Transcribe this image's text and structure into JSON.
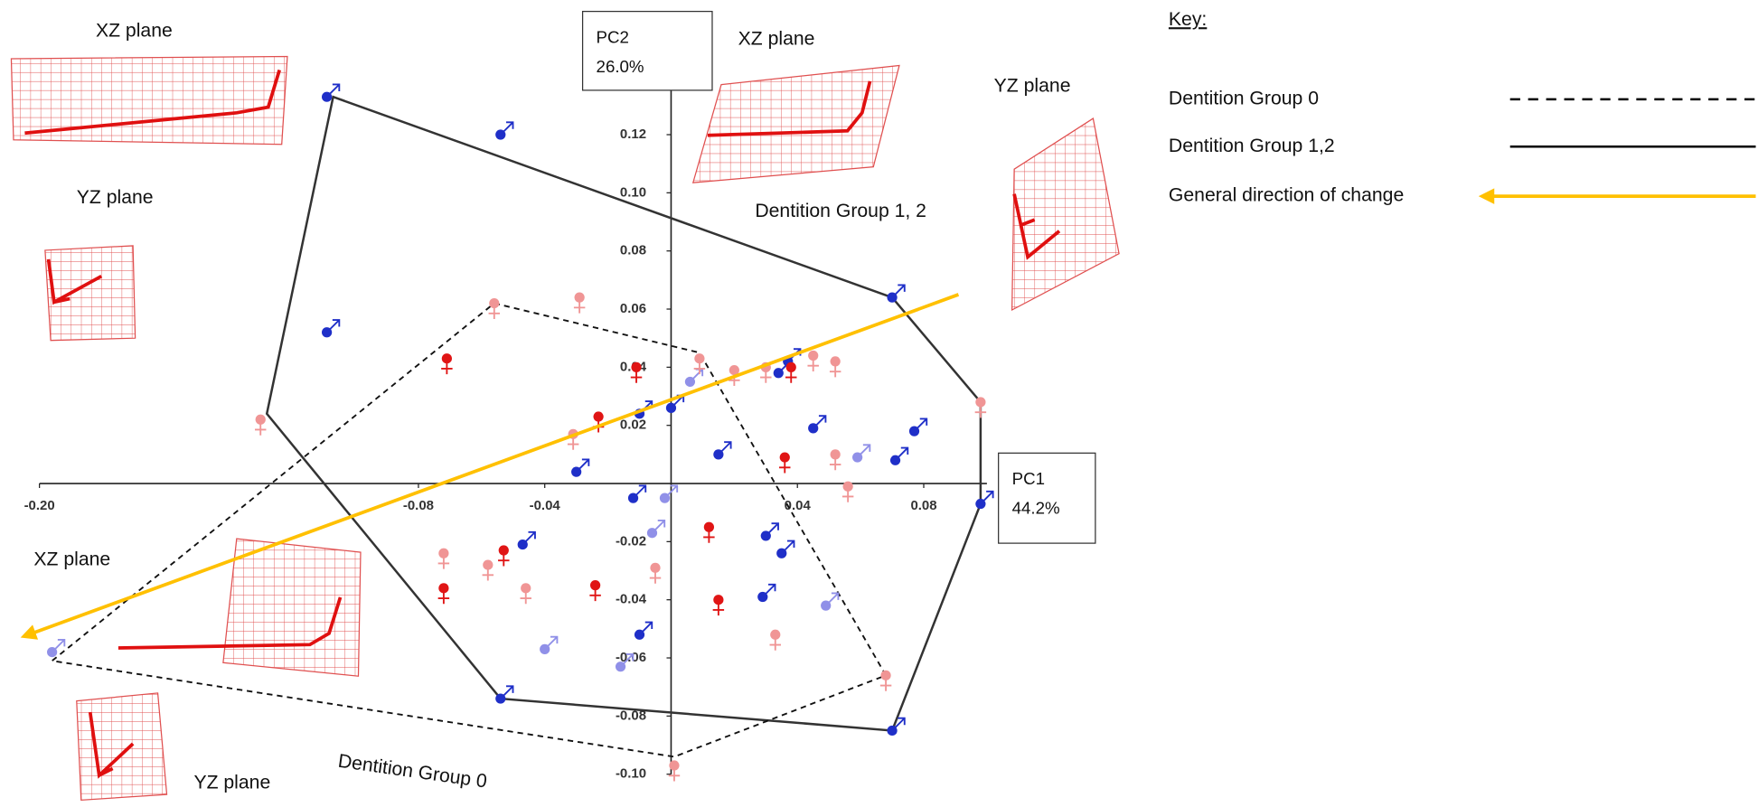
{
  "chart_data": {
    "type": "scatter",
    "xlim": [
      -0.2,
      0.1
    ],
    "ylim": [
      -0.1,
      0.16
    ],
    "xticks": [
      {
        "value": -0.2,
        "label": "-0.20"
      },
      -0.08,
      -0.04,
      0.04,
      0.08
    ],
    "yticks": [
      0.12,
      {
        "value": 0.1,
        "label": "0.10"
      },
      0.08,
      0.06,
      0.04,
      0.02,
      -0.02,
      -0.04,
      -0.06,
      -0.08,
      {
        "value": -0.1,
        "label": "-0.10"
      }
    ],
    "x_label": [
      "PC1",
      "44.2%"
    ],
    "y_label": [
      "PC2",
      "26.0%"
    ],
    "series": [
      {
        "color": "#1f2fc8",
        "symbol": "male",
        "x": [
          -0.109,
          -0.054,
          -0.109,
          0.07,
          0.034,
          0.037,
          -0.01,
          0.0,
          -0.03,
          0.015,
          0.045,
          0.071,
          0.077,
          -0.012,
          -0.047,
          0.03,
          0.035,
          0.029,
          -0.01,
          -0.054,
          0.07,
          0.098
        ],
        "values": [
          0.133,
          0.12,
          0.052,
          0.064,
          0.038,
          0.042,
          0.024,
          0.026,
          0.004,
          0.01,
          0.019,
          0.008,
          0.018,
          -0.005,
          -0.021,
          -0.018,
          -0.024,
          -0.039,
          -0.052,
          -0.074,
          -0.085,
          -0.007
        ]
      },
      {
        "color": "#9090e8",
        "symbol": "male",
        "x": [
          0.006,
          0.059,
          -0.002,
          -0.006,
          0.049,
          -0.04,
          -0.016,
          -0.196
        ],
        "values": [
          0.035,
          0.009,
          -0.005,
          -0.017,
          -0.042,
          -0.057,
          -0.063,
          -0.058
        ]
      },
      {
        "color": "#e01515",
        "symbol": "female",
        "x": [
          -0.071,
          -0.011,
          -0.023,
          0.036,
          -0.053,
          -0.072,
          -0.024,
          0.012,
          0.015,
          0.038
        ],
        "values": [
          0.043,
          0.04,
          0.023,
          0.009,
          -0.023,
          -0.036,
          -0.035,
          -0.015,
          -0.04,
          0.04
        ]
      },
      {
        "color": "#f09595",
        "symbol": "female",
        "x": [
          -0.056,
          -0.029,
          -0.031,
          0.009,
          0.02,
          0.03,
          0.045,
          0.052,
          0.052,
          0.056,
          0.098,
          -0.13,
          -0.072,
          -0.058,
          -0.046,
          -0.005,
          0.033,
          0.068,
          0.001
        ],
        "values": [
          0.062,
          0.064,
          0.017,
          0.043,
          0.039,
          0.04,
          0.044,
          0.042,
          0.01,
          -0.001,
          0.028,
          0.022,
          -0.024,
          -0.028,
          -0.036,
          -0.029,
          -0.052,
          -0.066,
          -0.097
        ]
      }
    ],
    "hulls": [
      {
        "style": "solid",
        "x": [
          -0.107,
          0.07,
          0.098,
          0.098,
          0.07,
          -0.054,
          -0.128
        ],
        "y": [
          0.133,
          0.064,
          0.028,
          -0.007,
          -0.085,
          -0.074,
          0.024
        ]
      },
      {
        "style": "dashed",
        "x": [
          -0.056,
          0.009,
          0.068,
          0.001,
          -0.196
        ],
        "y": [
          0.062,
          0.045,
          -0.066,
          -0.094,
          -0.061
        ]
      }
    ],
    "arrow": {
      "color": "#ffc000",
      "x": [
        0.091,
        -0.206
      ],
      "y": [
        0.065,
        -0.053
      ]
    },
    "annotations": [
      "XZ plane",
      "XZ plane",
      "XZ plane",
      "YZ plane",
      "YZ plane",
      "YZ plane",
      "Dentition Group 1, 2",
      "Dentition Group 0"
    ],
    "key": {
      "title": "Key:",
      "entries": [
        "Dentition Group 0",
        "Dentition Group 1,2",
        "General direction of change"
      ]
    }
  }
}
